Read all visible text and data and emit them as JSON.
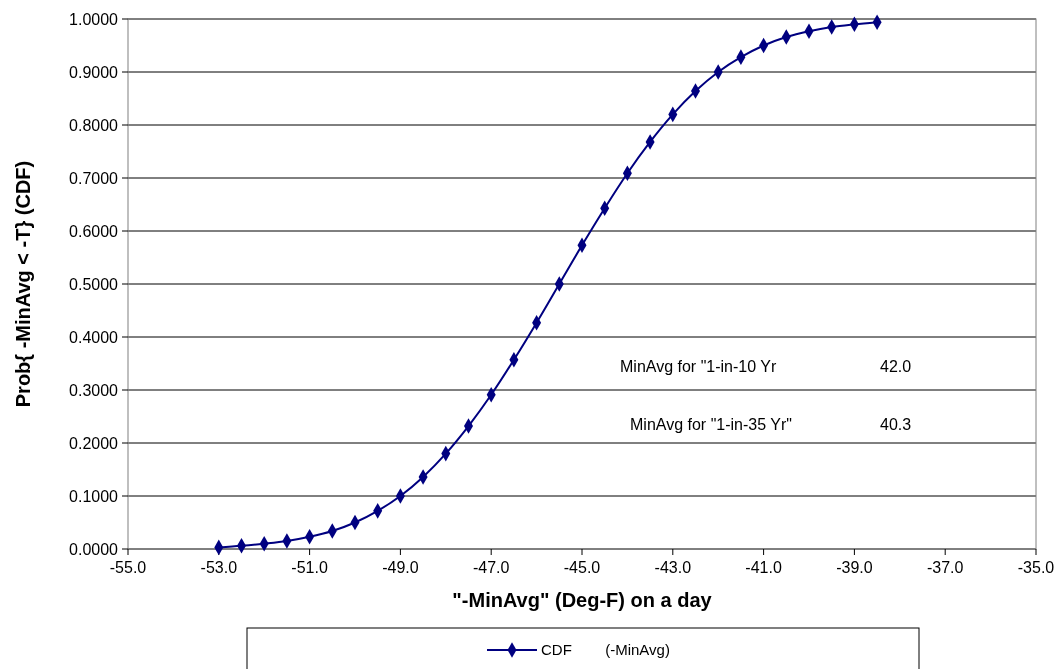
{
  "chart_data": {
    "type": "line",
    "xlabel": "\"-MinAvg\" (Deg-F) on a day",
    "ylabel": "Prob{ -MinAvg < -T} (CDF)",
    "x": [
      -53,
      -52.5,
      -52,
      -51.5,
      -51,
      -50.5,
      -50,
      -49.5,
      -49,
      -48.5,
      -48,
      -47.5,
      -47,
      -46.5,
      -46,
      -45.5,
      -45,
      -44.5,
      -44,
      -43.5,
      -43,
      -42.5,
      -42,
      -41.5,
      -41,
      -40.5,
      -40,
      -39.5,
      -39,
      -38.5
    ],
    "series": [
      {
        "name": "CDF        (-MinAvg)",
        "color": "#000080",
        "values": [
          0.003,
          0.006,
          0.01,
          0.015,
          0.023,
          0.034,
          0.05,
          0.072,
          0.1,
          0.136,
          0.18,
          0.232,
          0.291,
          0.357,
          0.427,
          0.5,
          0.573,
          0.643,
          0.709,
          0.768,
          0.82,
          0.864,
          0.9,
          0.928,
          0.95,
          0.966,
          0.977,
          0.985,
          0.99,
          0.994
        ]
      }
    ],
    "xlim": [
      -55,
      -35
    ],
    "xticks": [
      {
        "value": -55,
        "label": "-55.0"
      },
      {
        "value": -53,
        "label": "-53.0"
      },
      {
        "value": -51,
        "label": "-51.0"
      },
      {
        "value": -49,
        "label": "-49.0"
      },
      {
        "value": -47,
        "label": "-47.0"
      },
      {
        "value": -45,
        "label": "-45.0"
      },
      {
        "value": -43,
        "label": "-43.0"
      },
      {
        "value": -41,
        "label": "-41.0"
      },
      {
        "value": -39,
        "label": "-39.0"
      },
      {
        "value": -37,
        "label": "-37.0"
      },
      {
        "value": -35,
        "label": "-35.0"
      }
    ],
    "ylim": [
      0,
      1
    ],
    "yticks": [
      {
        "value": 0,
        "label": "0.0000"
      },
      {
        "value": 0.1,
        "label": "0.1000"
      },
      {
        "value": 0.2,
        "label": "0.2000"
      },
      {
        "value": 0.3,
        "label": "0.3000"
      },
      {
        "value": 0.4,
        "label": "0.4000"
      },
      {
        "value": 0.5,
        "label": "0.5000"
      },
      {
        "value": 0.6,
        "label": "0.6000"
      },
      {
        "value": 0.7,
        "label": "0.7000"
      },
      {
        "value": 0.8,
        "label": "0.8000"
      },
      {
        "value": 0.9,
        "label": "0.9000"
      },
      {
        "value": 1,
        "label": "1.0000"
      }
    ],
    "annotations": [
      "MinAvg for \"1-in-10 Yr",
      "42.0",
      "MinAvg for \"1-in-35 Yr\"",
      "40.3"
    ],
    "grid": "y",
    "legend": "bottom",
    "marker": "diamond",
    "line_style": "solid"
  }
}
